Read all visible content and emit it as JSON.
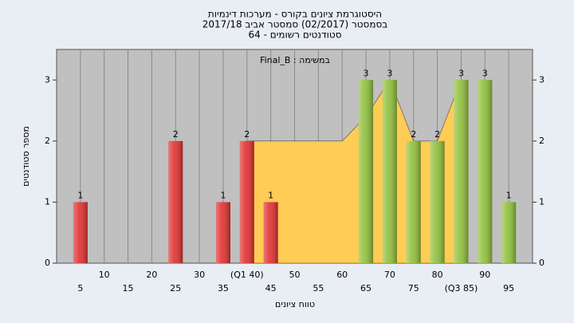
{
  "chart_data": {
    "type": "bar",
    "title": "היסטוגרמת ציונים בקורס - מערכות דינמיות",
    "subtitle": "בסמסטר  (02/2017)  סמסטר אביב 2017/18",
    "subtitle2": "סטודנטים רשומים - 64",
    "annotation": "Final_B : במשימה",
    "xlabel": "טווח ציונים",
    "ylabel": "מספר סטודנטים",
    "x": [
      5,
      10,
      15,
      20,
      25,
      30,
      35,
      40,
      45,
      50,
      55,
      60,
      65,
      70,
      75,
      80,
      85,
      90,
      95
    ],
    "values": [
      1,
      0,
      0,
      0,
      2,
      0,
      1,
      2,
      1,
      0,
      0,
      0,
      3,
      3,
      2,
      2,
      3,
      3,
      1
    ],
    "colors": [
      "#e03030",
      "#e03030",
      "#e03030",
      "#e03030",
      "#e03030",
      "#e03030",
      "#e03030",
      "#e03030",
      "#e03030",
      "#e03030",
      "#e03030",
      "#e03030",
      "#8fbf3a",
      "#8fbf3a",
      "#8fbf3a",
      "#8fbf3a",
      "#8fbf3a",
      "#8fbf3a",
      "#8fbf3a"
    ],
    "area": {
      "color": "#ffcc55",
      "values": [
        null,
        null,
        null,
        null,
        null,
        null,
        null,
        2,
        2,
        2,
        2,
        2,
        2.4,
        3,
        2,
        2,
        3,
        null,
        null
      ]
    },
    "xlim": [
      0,
      100
    ],
    "xticks": [
      5,
      10,
      15,
      20,
      25,
      30,
      35,
      {
        "value": 40,
        "label": "(Q1 40)"
      },
      45,
      50,
      55,
      60,
      65,
      70,
      75,
      80,
      {
        "value": 85,
        "label": "(Q3 85)"
      },
      90,
      95
    ],
    "ylim": [
      0,
      3.5
    ],
    "yticks": [
      0,
      1,
      2,
      3
    ],
    "grid": true
  }
}
